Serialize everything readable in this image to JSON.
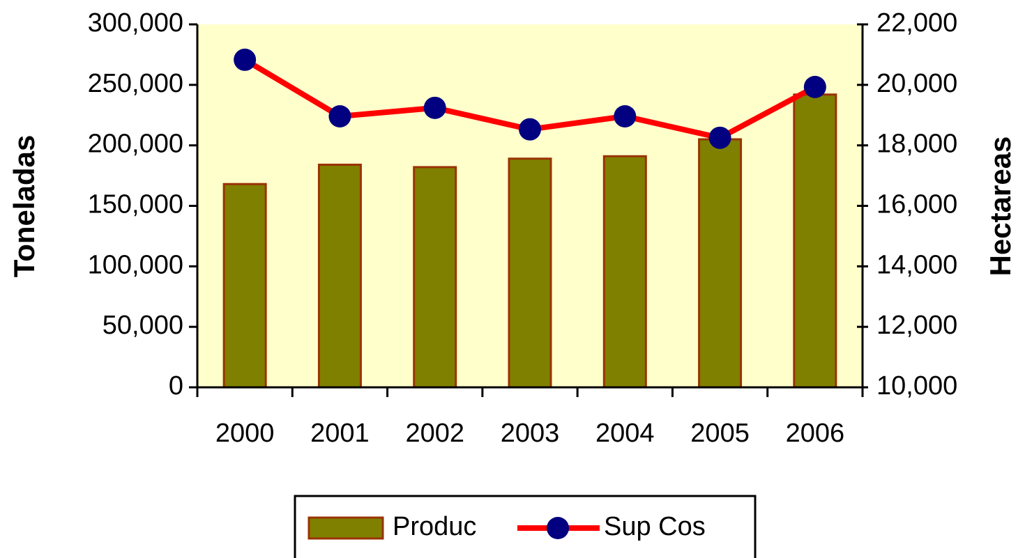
{
  "chart_data": {
    "type": "bar_line",
    "ylabel": "Toneladas",
    "y2label": "Hectareas",
    "categories": [
      "2000",
      "2001",
      "2002",
      "2003",
      "2004",
      "2005",
      "2006"
    ],
    "series": [
      {
        "name": "Produc",
        "type": "bar",
        "color": "#808000",
        "edge_color": "#993300",
        "values": [
          168000,
          184000,
          182000,
          189000,
          191000,
          205000,
          242000
        ]
      },
      {
        "name": "Sup Cos",
        "type": "line",
        "axis": "y2",
        "color": "#ff0000",
        "marker_color": "#000080",
        "values": [
          20830,
          18960,
          19240,
          18530,
          18960,
          18250,
          19930
        ]
      }
    ],
    "ylim": [
      0,
      300000
    ],
    "yticks": [
      0,
      {
        "value": 50000,
        "label": "50,000"
      },
      {
        "value": 100000,
        "label": "100,000"
      },
      {
        "value": 150000,
        "label": "150,000"
      },
      {
        "value": 200000,
        "label": "200,000"
      },
      {
        "value": 250000,
        "label": "250,000"
      },
      {
        "value": 300000,
        "label": "300,000"
      }
    ],
    "y2lim": [
      10000,
      22000
    ],
    "y2ticks": [
      {
        "value": 10000,
        "label": "10,000"
      },
      {
        "value": 12000,
        "label": "12,000"
      },
      {
        "value": 14000,
        "label": "14,000"
      },
      {
        "value": 16000,
        "label": "16,000"
      },
      {
        "value": 18000,
        "label": "18,000"
      },
      {
        "value": 20000,
        "label": "20,000"
      },
      {
        "value": 22000,
        "label": "22,000"
      }
    ],
    "plot_background": "#ffffcc",
    "legend": "bottom"
  }
}
